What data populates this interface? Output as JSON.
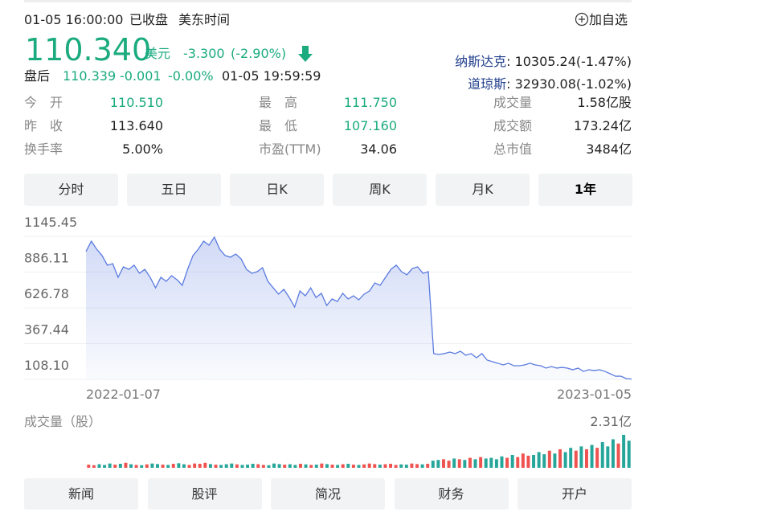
{
  "status": {
    "time": "01-05 16:00:00",
    "state": "已收盘",
    "zone": "美东时间"
  },
  "add_watch": "加自选",
  "quote": {
    "price": "110.340",
    "currency": "美元",
    "change": "-3.300",
    "change_pct": "(-2.90%)"
  },
  "after_hours": {
    "label": "盘后",
    "price": "110.339",
    "change": "-0.001",
    "change_pct": "-0.00%",
    "time": "01-05 19:59:59"
  },
  "indices": [
    {
      "name": "纳斯达克",
      "value": ": 10305.24(-1.47%)"
    },
    {
      "name": "道琼斯",
      "value": ": 32930.08(-1.02%)"
    }
  ],
  "stats": [
    [
      {
        "label": "今　开",
        "value": "110.510",
        "color": "#1bab7e"
      },
      {
        "label": "最　高",
        "value": "111.750",
        "color": "#1bab7e"
      },
      {
        "label": "成交量",
        "value": "1.58亿股"
      }
    ],
    [
      {
        "label": "昨　收",
        "value": "113.640"
      },
      {
        "label": "最　低",
        "value": "107.160",
        "color": "#1bab7e"
      },
      {
        "label": "成交额",
        "value": "173.24亿"
      }
    ],
    [
      {
        "label": "换手率",
        "value": "5.00%"
      },
      {
        "label": "市盈(TTM)",
        "value": "34.06"
      },
      {
        "label": "总市值",
        "value": "3484亿"
      }
    ]
  ],
  "tabs": [
    "分时",
    "五日",
    "日K",
    "周K",
    "月K",
    "1年"
  ],
  "active_tab": 5,
  "chart_data": {
    "type": "line",
    "color": "#5b7be0",
    "categories": [
      "2022-01-07",
      null,
      null,
      null,
      null,
      null,
      null,
      null,
      null,
      null,
      null,
      null,
      null,
      null,
      null,
      null,
      null,
      null,
      null,
      null,
      null,
      null,
      null,
      null,
      null,
      null,
      null,
      null,
      null,
      null,
      null,
      null,
      null,
      null,
      null,
      null,
      null,
      null,
      null,
      null,
      null,
      null,
      null,
      null,
      null,
      null,
      null,
      null,
      null,
      null,
      null,
      null,
      null,
      null,
      null,
      null,
      null,
      null,
      null,
      null,
      null,
      null,
      null,
      null,
      null,
      null,
      null,
      null,
      null,
      null,
      null,
      null,
      null,
      null,
      null,
      null,
      null,
      null,
      null,
      null,
      null,
      null,
      null,
      null,
      null,
      null,
      null,
      null,
      null,
      null,
      null,
      null,
      null,
      null,
      null,
      null,
      null,
      null,
      null,
      null,
      null,
      null,
      "2023-01-05"
    ],
    "values": [
      1035,
      1110,
      1052,
      1006,
      936,
      947,
      848,
      924,
      906,
      936,
      877,
      906,
      848,
      772,
      848,
      819,
      860,
      831,
      790,
      906,
      1006,
      1052,
      1110,
      1081,
      1140,
      1052,
      1006,
      994,
      1017,
      982,
      906,
      877,
      889,
      918,
      819,
      772,
      726,
      761,
      702,
      633,
      749,
      714,
      772,
      702,
      732,
      644,
      691,
      673,
      732,
      691,
      714,
      685,
      726,
      749,
      807,
      790,
      848,
      906,
      936,
      889,
      866,
      912,
      924,
      877,
      889,
      295,
      289,
      295,
      306,
      295,
      312,
      283,
      295,
      265,
      295,
      248,
      236,
      225,
      213,
      225,
      207,
      207,
      213,
      225,
      213,
      207,
      190,
      201,
      190,
      195,
      190,
      178,
      190,
      166,
      178,
      172,
      178,
      166,
      149,
      131,
      131,
      114,
      110.34
    ],
    "ylim": [
      108.1,
      1145.45
    ],
    "yticks": [
      1145.45,
      886.11,
      626.78,
      367.44,
      {
        "value": 108.1,
        "label": "108.10"
      }
    ],
    "grid": true
  },
  "volume_data": {
    "type": "bar",
    "title": "成交量（股）",
    "up_color": "#ef5350",
    "down_color": "#26a69a",
    "values": [
      0.22,
      0.18,
      0.25,
      0.2,
      0.3,
      0.22,
      0.28,
      0.35,
      0.25,
      0.2,
      0.18,
      0.24,
      0.3,
      0.26,
      0.22,
      0.2,
      0.28,
      0.32,
      0.25,
      0.2,
      0.3,
      0.28,
      0.35,
      0.26,
      0.22,
      0.2,
      0.25,
      0.3,
      0.24,
      0.2,
      0.22,
      0.28,
      0.25,
      0.2,
      0.18,
      0.3,
      0.26,
      0.22,
      0.25,
      0.2,
      0.28,
      0.24,
      0.2,
      0.22,
      0.3,
      0.26,
      0.22,
      0.2,
      0.25,
      0.28,
      0.22,
      0.2,
      0.24,
      0.3,
      0.26,
      0.22,
      0.25,
      0.28,
      0.2,
      0.24,
      0.22,
      0.3,
      0.26,
      0.24,
      0.28,
      0.5,
      0.55,
      0.6,
      0.5,
      0.65,
      0.6,
      0.55,
      0.7,
      0.6,
      0.75,
      0.65,
      0.7,
      0.6,
      0.8,
      0.7,
      0.9,
      0.75,
      1.0,
      0.85,
      0.9,
      1.1,
      0.95,
      1.2,
      1.0,
      1.3,
      1.1,
      1.4,
      1.2,
      1.5,
      1.3,
      1.6,
      1.4,
      1.8,
      1.5,
      2.0,
      1.7,
      2.31,
      1.9
    ],
    "ylim": [
      0,
      2.31
    ],
    "yticks": [
      {
        "value": 2.31,
        "label": "2.31亿"
      }
    ]
  },
  "bottom_tabs": [
    "新闻",
    "股评",
    "简况",
    "财务",
    "开户"
  ]
}
